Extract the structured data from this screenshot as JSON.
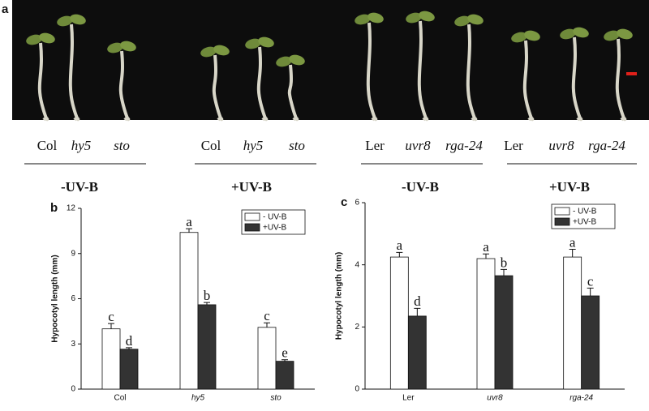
{
  "photo_panel": {
    "letter": "a",
    "groups": [
      {
        "labels": [
          "Col",
          "hy5",
          "sto"
        ],
        "treatment": "-UV-B"
      },
      {
        "labels": [
          "Col",
          "hy5",
          "sto"
        ],
        "treatment": "+UV-B"
      },
      {
        "labels": [
          "Ler",
          "uvr8",
          "rga-24"
        ],
        "treatment": "-UV-B"
      },
      {
        "labels": [
          "Ler",
          "uvr8",
          "rga-24"
        ],
        "treatment": "+UV-B"
      }
    ]
  },
  "chart_data": [
    {
      "type": "bar",
      "panel": "b",
      "y_label": "Hypocotyl length (mm)",
      "categories": [
        "Col",
        "hy5",
        "sto"
      ],
      "series": [
        {
          "name": "- UV-B",
          "color": "#ffffff",
          "values": [
            4.0,
            10.4,
            4.1
          ],
          "errors": [
            0.35,
            0.25,
            0.3
          ],
          "letters": [
            "c",
            "a",
            "c"
          ]
        },
        {
          "name": "+UV-B",
          "color": "#333333",
          "values": [
            2.65,
            5.6,
            1.85
          ],
          "errors": [
            0.1,
            0.15,
            0.1
          ],
          "letters": [
            "d",
            "b",
            "e"
          ]
        }
      ],
      "ylim": [
        0,
        12
      ],
      "yticks": [
        0,
        3,
        6,
        9,
        12
      ],
      "legend": "upper right"
    },
    {
      "type": "bar",
      "panel": "c",
      "y_label": "Hypocotyl length (mm)",
      "categories": [
        "Ler",
        "uvr8",
        "rga-24"
      ],
      "series": [
        {
          "name": "- UV-B",
          "color": "#ffffff",
          "values": [
            4.25,
            4.2,
            4.25
          ],
          "errors": [
            0.15,
            0.15,
            0.25
          ],
          "letters": [
            "a",
            "a",
            "a"
          ]
        },
        {
          "name": "+UV-B",
          "color": "#333333",
          "values": [
            2.35,
            3.65,
            3.0
          ],
          "errors": [
            0.25,
            0.2,
            0.25
          ],
          "letters": [
            "d",
            "b",
            "c"
          ]
        }
      ],
      "ylim": [
        0,
        6
      ],
      "yticks": [
        0,
        2,
        4,
        6
      ],
      "legend": "upper right"
    }
  ]
}
